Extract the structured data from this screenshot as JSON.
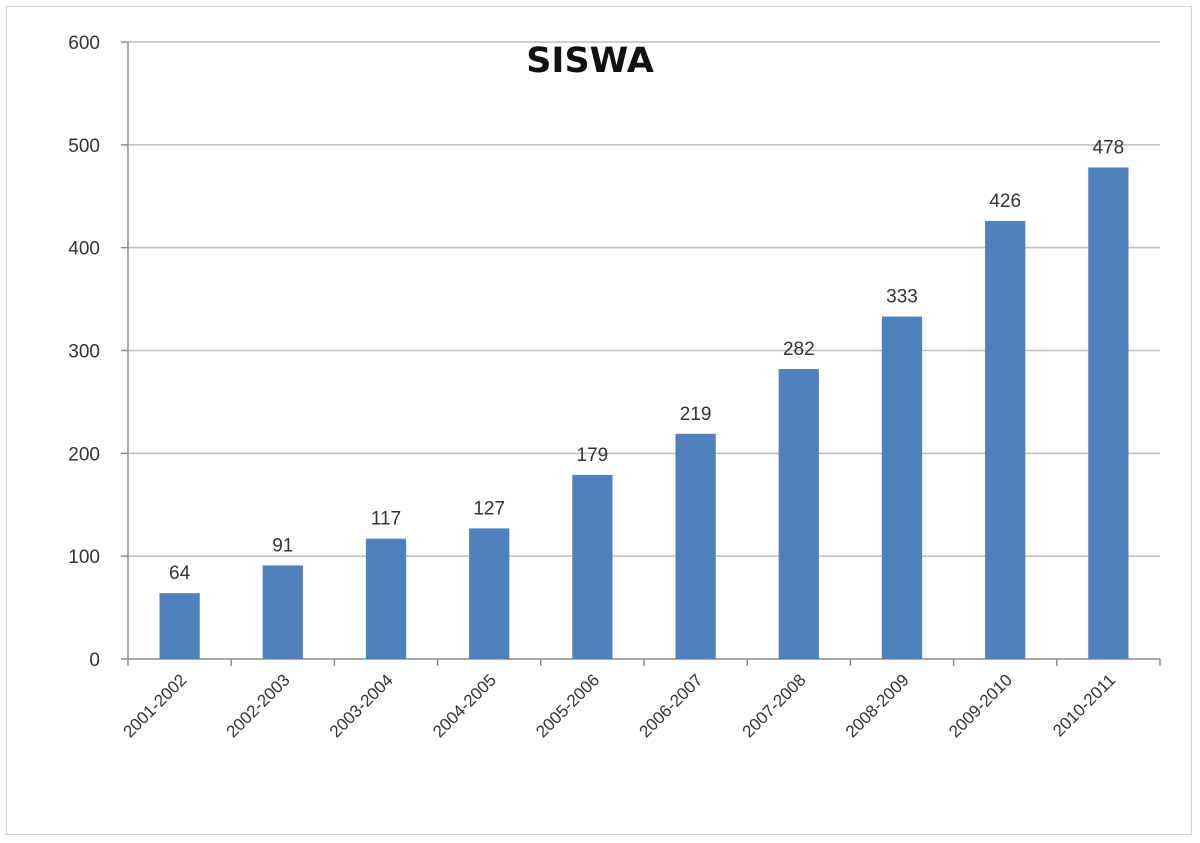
{
  "chart_data": {
    "type": "bar",
    "title": "SISWA",
    "xlabel": "",
    "ylabel": "",
    "categories": [
      "2001-2002",
      "2002-2003",
      "2003-2004",
      "2004-2005",
      "2005-2006",
      "2006-2007",
      "2007-2008",
      "2008-2009",
      "2009-2010",
      "2010-2011"
    ],
    "values": [
      64,
      91,
      117,
      127,
      179,
      219,
      282,
      333,
      426,
      478
    ],
    "data_labels": [
      "64",
      "91",
      "117",
      "127",
      "179",
      "219",
      "282",
      "333",
      "426",
      "478"
    ],
    "ylim": [
      0,
      600
    ],
    "yticks": [
      "0",
      "100",
      "200",
      "300",
      "400",
      "500",
      "600"
    ],
    "grid": true,
    "legend": "none",
    "bar_color": "#4f81bd"
  }
}
